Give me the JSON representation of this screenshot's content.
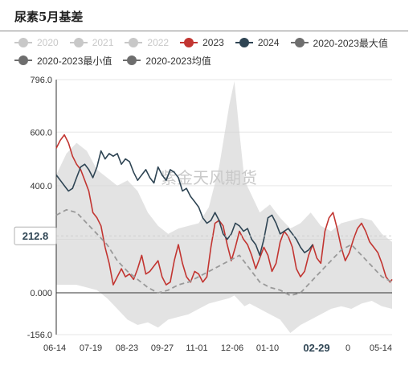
{
  "title": "尿素5月基差",
  "legend": [
    {
      "label": "2020",
      "color": "#c8c8c8",
      "active": false
    },
    {
      "label": "2021",
      "color": "#c8c8c8",
      "active": false
    },
    {
      "label": "2022",
      "color": "#c8c8c8",
      "active": false
    },
    {
      "label": "2023",
      "color": "#c23531",
      "active": true
    },
    {
      "label": "2024",
      "color": "#2f4554",
      "active": true
    },
    {
      "label": "2020-2023最大值",
      "color": "#6e6e6e",
      "active": true
    },
    {
      "label": "2020-2023最小值",
      "color": "#6e6e6e",
      "active": true
    },
    {
      "label": "2020-2023均值",
      "color": "#6e6e6e",
      "active": true
    }
  ],
  "watermark": "紫金天风期货",
  "pointer": {
    "value_label": "212.8",
    "x_label": "02-29",
    "x_label2": "0"
  },
  "chart_data": {
    "type": "line",
    "title": "尿素5月基差",
    "ylim": [
      -156,
      796
    ],
    "y_ticks": [
      "796.0",
      "600.0",
      "400.0",
      "200.0",
      "0.000",
      "-156.0"
    ],
    "x_ticks": [
      "06-14",
      "07-19",
      "08-23",
      "09-27",
      "11-01",
      "12-06",
      "01-10",
      "05-14"
    ],
    "pointer_y": 212.8,
    "grid": true,
    "x_index_range": [
      0,
      330
    ],
    "band": {
      "name_max": "2020-2023最大值",
      "name_min": "2020-2023最小值",
      "x": [
        0,
        10,
        20,
        30,
        40,
        50,
        60,
        70,
        80,
        90,
        100,
        110,
        120,
        130,
        140,
        150,
        160,
        170,
        175,
        180,
        185,
        190,
        200,
        210,
        220,
        230,
        240,
        250,
        260,
        270,
        280,
        290,
        300,
        310,
        320,
        330
      ],
      "max": [
        440,
        520,
        560,
        530,
        460,
        430,
        400,
        420,
        380,
        300,
        250,
        220,
        240,
        250,
        260,
        320,
        470,
        700,
        790,
        600,
        420,
        380,
        300,
        330,
        280,
        240,
        260,
        300,
        250,
        230,
        260,
        270,
        280,
        270,
        220,
        190
      ],
      "min": [
        30,
        30,
        30,
        20,
        10,
        -20,
        -60,
        -100,
        -120,
        -110,
        -130,
        -100,
        -90,
        -80,
        -60,
        -40,
        -30,
        -20,
        -10,
        -30,
        -50,
        -40,
        -60,
        -80,
        -100,
        -150,
        -120,
        -100,
        -80,
        -60,
        -50,
        -60,
        -40,
        -30,
        -50,
        -60
      ]
    },
    "series": [
      {
        "name": "2023",
        "color": "#c23531",
        "x": [
          0,
          4,
          8,
          12,
          16,
          20,
          24,
          28,
          32,
          36,
          40,
          44,
          48,
          52,
          56,
          60,
          64,
          68,
          72,
          76,
          80,
          84,
          88,
          92,
          96,
          100,
          104,
          108,
          112,
          116,
          120,
          124,
          128,
          132,
          136,
          140,
          144,
          148,
          152,
          156,
          160,
          164,
          168,
          172,
          176,
          180,
          184,
          188,
          192,
          196,
          200,
          204,
          208,
          212,
          216,
          220,
          224,
          228,
          232,
          236,
          240,
          244,
          248,
          252,
          256,
          260,
          264,
          268,
          272,
          276,
          280,
          284,
          288,
          292,
          296,
          300,
          304,
          308,
          312,
          316,
          320,
          324,
          328,
          330
        ],
        "values": [
          540,
          570,
          590,
          560,
          510,
          480,
          460,
          420,
          380,
          300,
          280,
          250,
          170,
          110,
          30,
          60,
          90,
          60,
          70,
          50,
          90,
          140,
          70,
          80,
          100,
          120,
          60,
          30,
          40,
          120,
          180,
          110,
          60,
          40,
          80,
          70,
          40,
          60,
          170,
          260,
          270,
          250,
          180,
          120,
          170,
          230,
          200,
          180,
          140,
          90,
          130,
          170,
          140,
          80,
          110,
          190,
          230,
          210,
          170,
          90,
          60,
          80,
          140,
          180,
          130,
          110,
          230,
          280,
          300,
          240,
          170,
          120,
          150,
          200,
          240,
          260,
          230,
          190,
          170,
          150,
          110,
          60,
          40,
          50
        ]
      },
      {
        "name": "2024",
        "color": "#2f4554",
        "x": [
          0,
          4,
          8,
          12,
          16,
          20,
          24,
          28,
          32,
          36,
          40,
          44,
          48,
          52,
          56,
          60,
          64,
          68,
          72,
          76,
          80,
          84,
          88,
          92,
          96,
          100,
          104,
          108,
          112,
          116,
          120,
          124,
          128,
          132,
          136,
          140,
          144,
          148,
          152,
          156,
          160,
          164,
          168,
          172,
          176,
          180,
          184,
          188,
          192,
          196,
          200,
          204,
          208,
          212,
          216,
          220,
          224,
          228,
          232,
          236,
          240,
          244,
          248,
          252
        ],
        "values": [
          440,
          420,
          400,
          380,
          390,
          430,
          470,
          480,
          460,
          430,
          470,
          530,
          500,
          520,
          510,
          520,
          480,
          500,
          490,
          450,
          420,
          440,
          460,
          430,
          410,
          470,
          440,
          420,
          460,
          450,
          430,
          380,
          390,
          360,
          340,
          320,
          280,
          260,
          270,
          300,
          270,
          220,
          200,
          220,
          260,
          250,
          230,
          240,
          200,
          180,
          140,
          200,
          280,
          290,
          260,
          220,
          230,
          240,
          220,
          200,
          170,
          150,
          160,
          180
        ]
      },
      {
        "name": "2020-2023均值",
        "color": "#9a9a9a",
        "dashed": true,
        "x": [
          0,
          10,
          20,
          30,
          40,
          50,
          60,
          70,
          80,
          90,
          100,
          110,
          120,
          130,
          140,
          150,
          160,
          170,
          180,
          190,
          200,
          210,
          220,
          230,
          240,
          250,
          260,
          270,
          280,
          290,
          300,
          310,
          320,
          330
        ],
        "values": [
          290,
          310,
          300,
          260,
          220,
          180,
          120,
          80,
          50,
          20,
          0,
          10,
          30,
          40,
          60,
          80,
          100,
          120,
          140,
          90,
          40,
          20,
          10,
          -10,
          0,
          40,
          80,
          120,
          160,
          180,
          140,
          100,
          60,
          40
        ]
      }
    ]
  }
}
